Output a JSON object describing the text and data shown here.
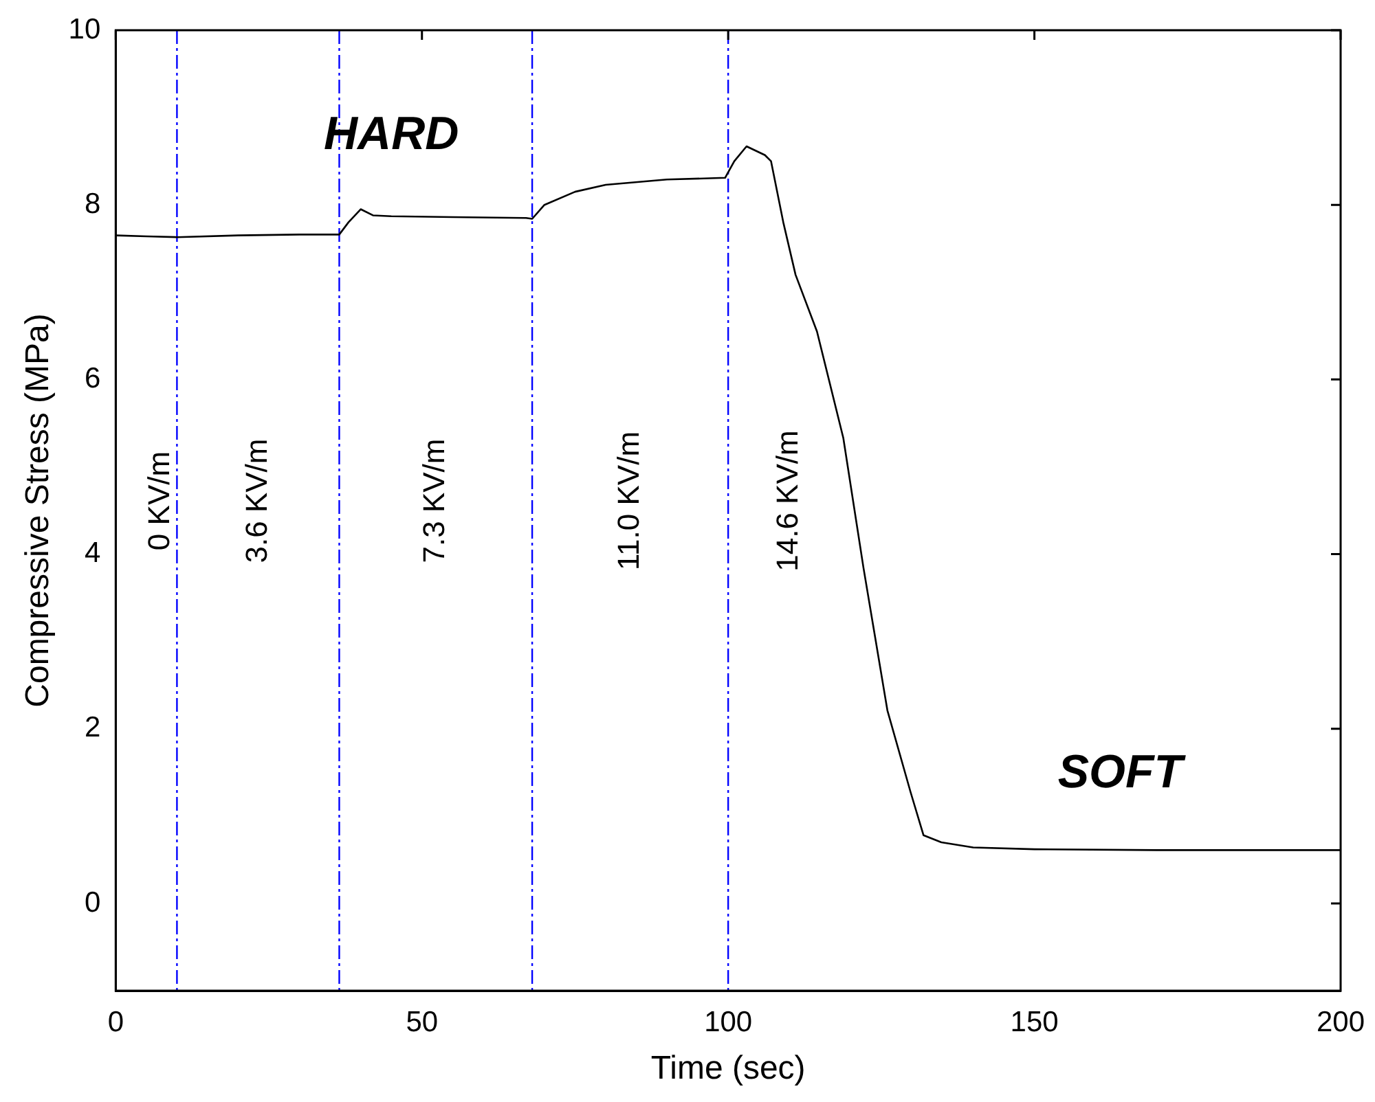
{
  "chart_data": {
    "type": "line",
    "xlabel": "Time (sec)",
    "ylabel": "Compressive Stress (MPa)",
    "xlim": [
      0,
      200
    ],
    "xticks": [
      0,
      50,
      100,
      150,
      200
    ],
    "ylim": [
      -1,
      10
    ],
    "yticks": [
      0,
      2,
      4,
      6,
      8,
      10
    ],
    "grid": false,
    "legend": false,
    "marker": "none",
    "line_style": "solid",
    "series": [
      {
        "color": "#000000",
        "x": [
          0,
          5,
          10,
          20,
          30,
          36.5,
          38,
          40,
          42,
          45,
          55,
          67,
          68,
          70,
          75,
          80,
          90,
          99.5,
          101,
          103,
          106,
          107,
          109,
          111,
          114.5,
          118.8,
          122.1,
          126,
          129.8,
          131.9,
          134.8,
          140,
          150,
          170,
          200
        ],
        "values": [
          7.65,
          7.64,
          7.63,
          7.65,
          7.66,
          7.66,
          7.8,
          7.95,
          7.88,
          7.87,
          7.86,
          7.85,
          7.84,
          8.0,
          8.15,
          8.23,
          8.29,
          8.31,
          8.5,
          8.67,
          8.57,
          8.5,
          7.8,
          7.2,
          6.55,
          5.33,
          3.84,
          2.21,
          1.27,
          0.78,
          0.7,
          0.64,
          0.62,
          0.61,
          0.61
        ]
      }
    ],
    "ref_lines": [
      {
        "axis": "x",
        "value": 10,
        "color": "#0000ff",
        "line_style": "dashed"
      },
      {
        "axis": "x",
        "value": 36.5,
        "color": "#0000ff",
        "line_style": "dashed"
      },
      {
        "axis": "x",
        "value": 68,
        "color": "#0000ff",
        "line_style": "dashed"
      },
      {
        "axis": "x",
        "value": 100,
        "color": "#0000ff",
        "line_style": "dashed"
      }
    ],
    "annotations": [
      "HARD",
      "SOFT",
      "0 KV/m",
      "3.6 KV/m",
      "7.3 KV/m",
      "11.0 KV/m",
      "14.6 KV/m"
    ]
  }
}
